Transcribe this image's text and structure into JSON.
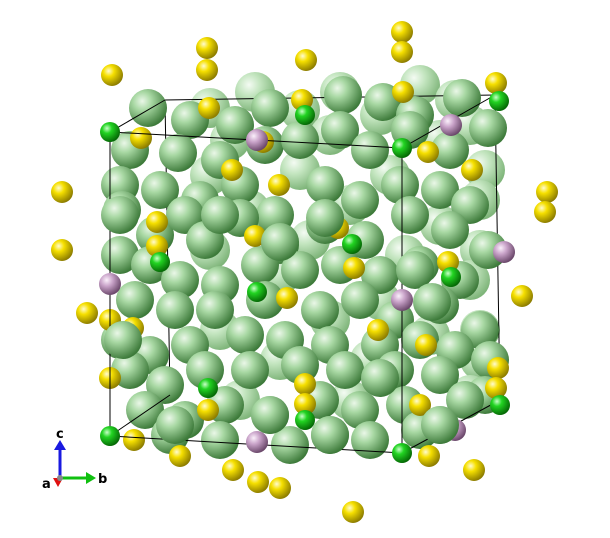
{
  "viewer": {
    "background": "#ffffff",
    "atom_colors": {
      "large_green": "#8fc98a",
      "large_green_dark": "#3f7a3c",
      "yellow": "#f4dd00",
      "yellow_dark": "#8a7a00",
      "small_green": "#1ed21e",
      "small_green_dark": "#067306",
      "mauve": "#c8a0c8",
      "mauve_dark": "#6e4a6e"
    }
  },
  "axes": {
    "a_label": "a",
    "b_label": "b",
    "c_label": "c",
    "a_color": "#e01010",
    "b_color": "#10c010",
    "c_color": "#1a1ae0"
  }
}
